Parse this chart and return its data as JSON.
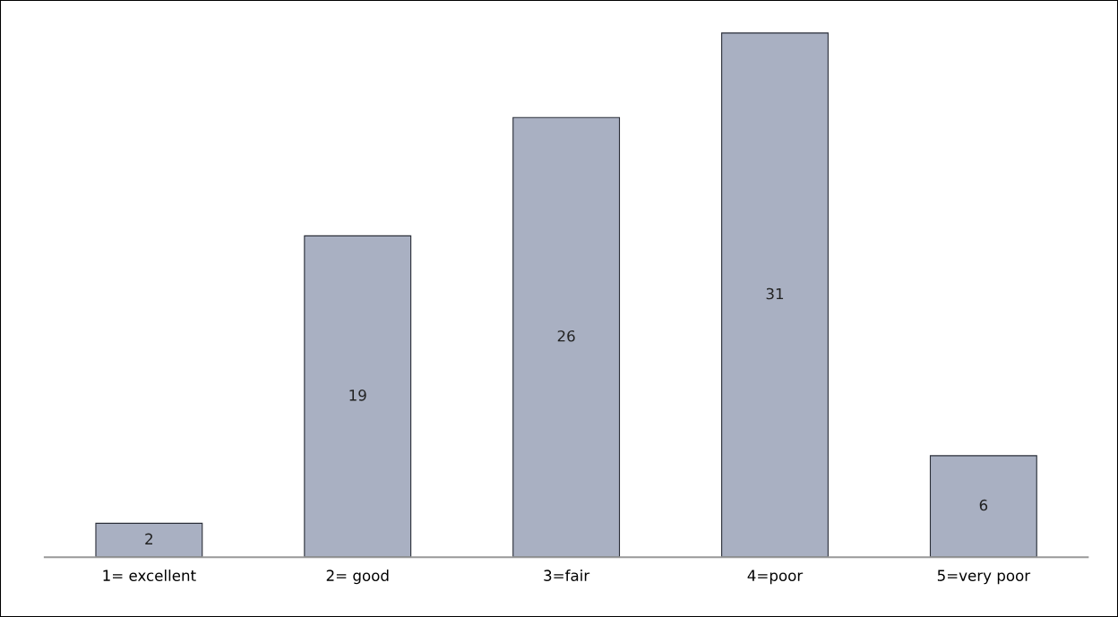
{
  "chart_data": {
    "type": "bar",
    "categories": [
      "1= excellent",
      "2= good",
      "3=fair",
      "4=poor",
      "5=very poor"
    ],
    "values": [
      2,
      19,
      26,
      31,
      6
    ],
    "color": "#a9b0c2",
    "data_labels": true,
    "grid": false,
    "legend": false
  }
}
